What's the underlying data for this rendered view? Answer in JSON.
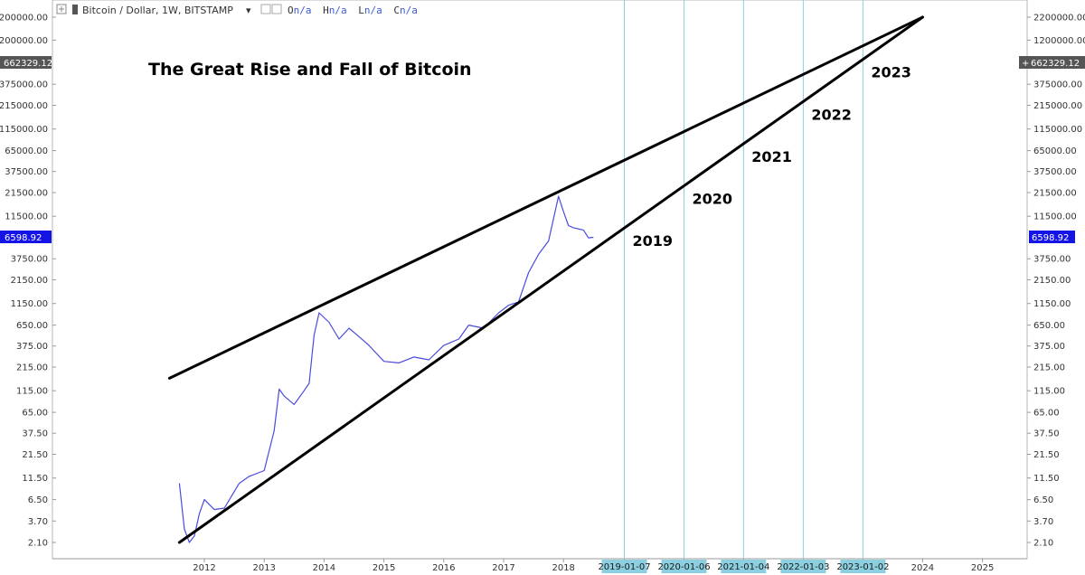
{
  "header": {
    "symbol": "Bitcoin / Dollar, 1W, BITSTAMP",
    "ohlc": [
      "O",
      "n/a",
      "H",
      "n/a",
      "L",
      "n/a",
      "C",
      "n/a"
    ]
  },
  "price_badges": {
    "upper": "662329.12",
    "current": "6598.92"
  },
  "colors": {
    "price_line": "#4a4ae0",
    "trend_line": "#000000",
    "vertical_marker": "#8ccfe0",
    "date_badge": "#8ccfe0",
    "current_badge": "#1414e6",
    "upper_badge": "#555555"
  },
  "chart_data": {
    "type": "line",
    "title": "The Great Rise and Fall of Bitcoin",
    "y_scale": "log",
    "y_ticks": [
      "2200000.00",
      "1200000.00",
      "662329.12",
      "375000.00",
      "215000.00",
      "115000.00",
      "65000.00",
      "37500.00",
      "21500.00",
      "11500.00",
      "6598.92",
      "3750.00",
      "2150.00",
      "1150.00",
      "650.00",
      "375.00",
      "215.00",
      "115.00",
      "65.00",
      "37.50",
      "21.50",
      "11.50",
      "6.50",
      "3.70",
      "2.10"
    ],
    "x_ticks": [
      "2012",
      "2013",
      "2014",
      "2015",
      "2016",
      "2017",
      "2018",
      "2019-01-07",
      "2020-01-06",
      "2021-01-04",
      "2022-01-03",
      "2023-01-02",
      "2024",
      "2025"
    ],
    "series": [
      {
        "name": "Bitcoin / Dollar",
        "x": [
          "2011-08",
          "2011-09",
          "2011-10",
          "2011-11",
          "2011-12",
          "2012-01",
          "2012-03",
          "2012-05",
          "2012-08",
          "2012-10",
          "2013-01",
          "2013-03",
          "2013-04",
          "2013-05",
          "2013-07",
          "2013-09",
          "2013-10",
          "2013-11",
          "2013-12",
          "2014-02",
          "2014-04",
          "2014-06",
          "2014-08",
          "2014-10",
          "2015-01",
          "2015-04",
          "2015-07",
          "2015-10",
          "2016-01",
          "2016-04",
          "2016-06",
          "2016-09",
          "2016-12",
          "2017-02",
          "2017-04",
          "2017-06",
          "2017-08",
          "2017-10",
          "2017-12",
          "2018-01",
          "2018-02",
          "2018-03",
          "2018-05",
          "2018-06",
          "2018-07"
        ],
        "y": [
          10,
          3,
          2.1,
          2.5,
          4.5,
          6.5,
          5,
          5.2,
          10,
          12,
          14,
          40,
          120,
          100,
          80,
          115,
          140,
          500,
          900,
          700,
          450,
          600,
          480,
          380,
          250,
          240,
          280,
          260,
          380,
          450,
          650,
          600,
          900,
          1100,
          1200,
          2600,
          4200,
          6000,
          19500,
          13000,
          9000,
          8500,
          8000,
          6500,
          6600
        ]
      }
    ],
    "trend_lines": [
      {
        "name": "upper",
        "from": {
          "x": "2011-06",
          "y": 160
        },
        "to": {
          "x": "2024-01",
          "y": 2200000
        }
      },
      {
        "name": "lower",
        "from": {
          "x": "2011-08",
          "y": 2.1
        },
        "to": {
          "x": "2024-01",
          "y": 2200000
        }
      }
    ],
    "vertical_markers": [
      "2019-01-07",
      "2020-01-06",
      "2021-01-04",
      "2022-01-03",
      "2023-01-02"
    ],
    "annotations": [
      "2019",
      "2020",
      "2021",
      "2022",
      "2023"
    ]
  }
}
